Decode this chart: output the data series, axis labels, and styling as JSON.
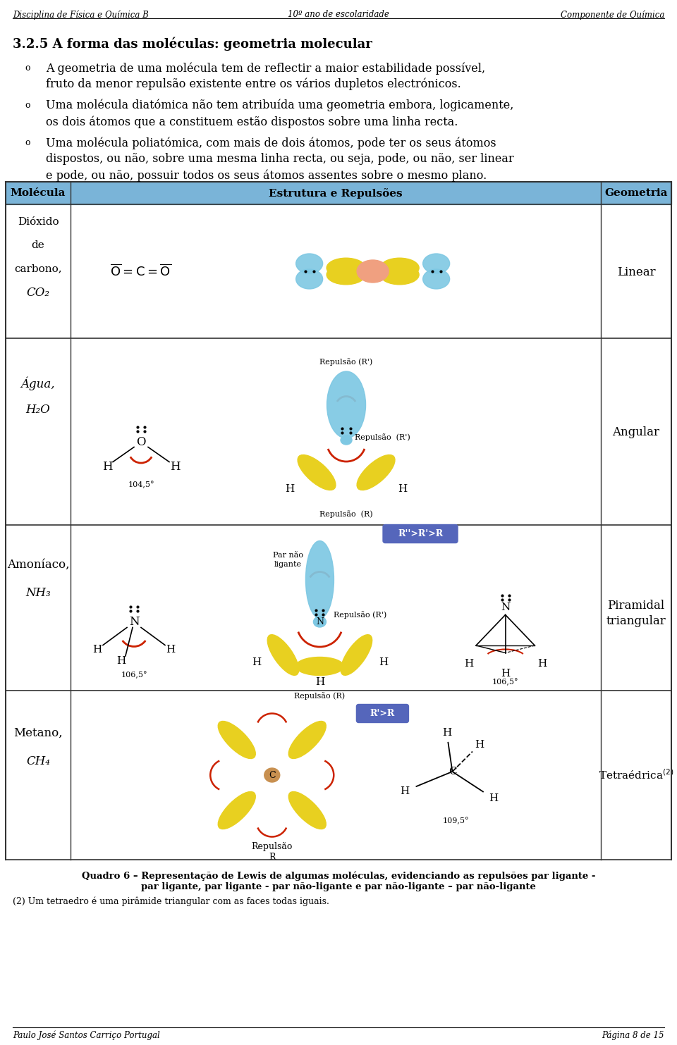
{
  "header_left": "Disciplina de Física e Química B",
  "header_center": "10º ano de escolaridade",
  "header_right": "Componente de Química",
  "title": "3.2.5 A forma das moléculas: geometria molecular",
  "bullet1_line1": "A geometria de uma molécula tem de reflectir a maior estabilidade possível,",
  "bullet1_line2": "fruto da menor repulsão existente entre os vários dupletos electrónicos.",
  "bullet2_line1": "Uma molécula diatómica não tem atribuída uma geometria embora, logicamente,",
  "bullet2_line2": "os dois átomos que a constituem estão dispostos sobre uma linha recta.",
  "bullet3_line1": "Uma molécula poliatómica, com mais de dois átomos, pode ter os seus átomos",
  "bullet3_line2": "dispostos, ou não, sobre uma mesma linha recta, ou seja, pode, ou não, ser linear",
  "bullet3_line3": "e pode, ou não, possuir todos os seus átomos assentes sobre o mesmo plano.",
  "table_header_bg": "#7ab4d8",
  "table_header_texts": [
    "Molécula",
    "Estrutura e Repulsões",
    "Geometria"
  ],
  "table_row1_mol": [
    "Dióxido",
    "de",
    "carbono,",
    "CO₂"
  ],
  "table_row1_geo": "Linear",
  "table_row2_mol": [
    "Água,",
    "H₂O"
  ],
  "table_row2_geo": "Angular",
  "table_row3_mol": [
    "Amoníaco,",
    "NH₃"
  ],
  "table_row3_geo": [
    "Piramidal",
    "triangular"
  ],
  "table_row4_mol": [
    "Metano,",
    "CH₄"
  ],
  "table_row4_geo": "Tetraédrica²⁾",
  "footer_bold1": "Quadro 6 – Representação de Lewis de algumas moléculas, evidenciando as repulsões par ligante -",
  "footer_bold2": "par ligante, par ligante - par não-ligante e par não-ligante – par não-ligante",
  "footer_note": "(2) Um tetraedro é uma pirâmide triangular com as faces todas iguais.",
  "footer_left": "Paulo José Santos Carriço Portugal",
  "footer_right": "Página 8 de 15",
  "yellow": "#e8d020",
  "blue_lobe": "#7ec8e3",
  "salmon": "#f0a080",
  "red_arc": "#cc2200",
  "box_fill": "#5566bb",
  "box_text": "#ffffff"
}
